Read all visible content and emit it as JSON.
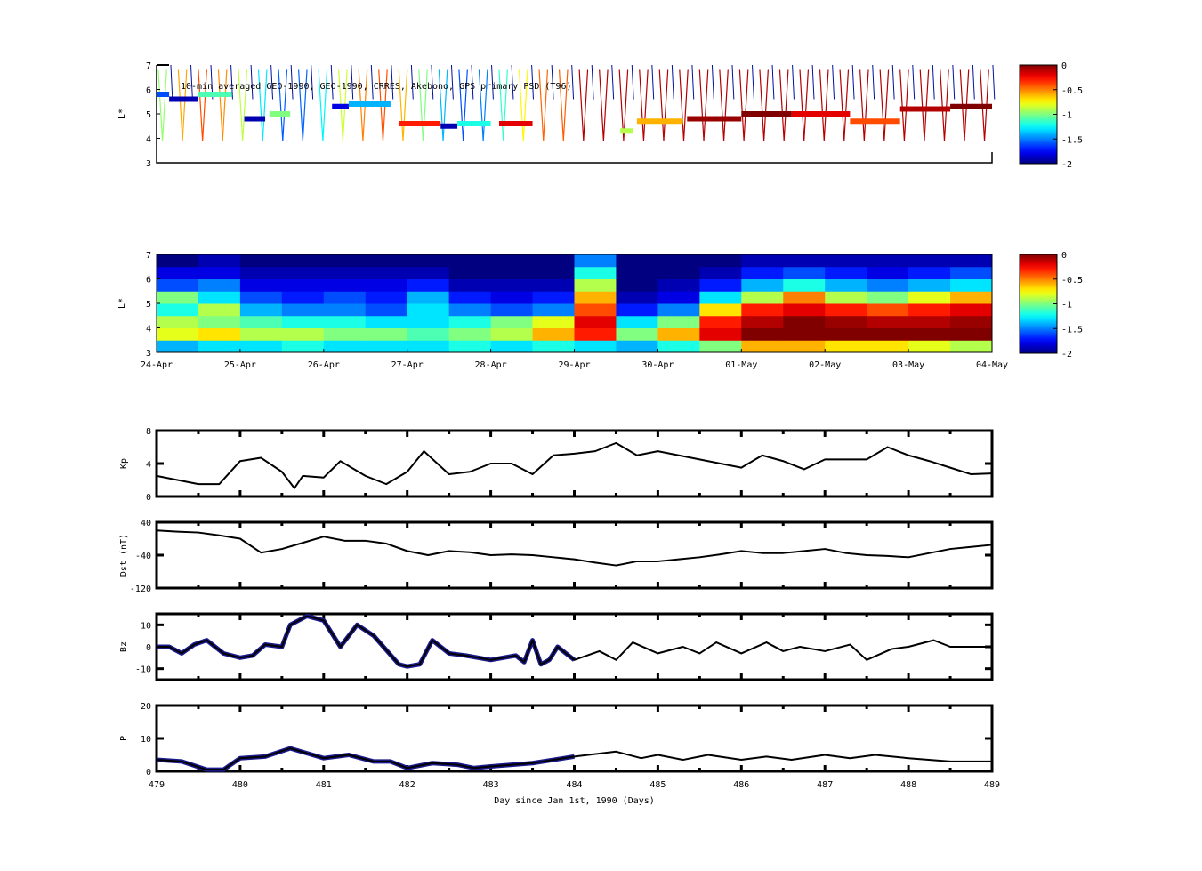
{
  "chart_data": [
    {
      "type": "heatmap",
      "id": "psd_obs",
      "title": "10-min averaged GEO-1990, GEO-1990, CRRES, Akebono, GPS  primary PSD (T96)",
      "ylabel": "L*",
      "ylim": [
        3,
        7
      ],
      "yticks": [
        3,
        4,
        5,
        6,
        7
      ],
      "xlim_days": [
        0,
        10
      ],
      "colorbar": {
        "range": [
          -2,
          0
        ],
        "ticks": [
          "0",
          "-0.5",
          "-1",
          "-1.5",
          "-2"
        ]
      },
      "tracks": [
        [
          0.0,
          0.15,
          5.8,
          -1.6
        ],
        [
          0.15,
          0.5,
          5.6,
          -1.9
        ],
        [
          0.5,
          0.9,
          5.8,
          -1.1
        ],
        [
          1.05,
          1.3,
          4.8,
          -1.9
        ],
        [
          1.35,
          1.6,
          5.0,
          -1.0
        ],
        [
          2.1,
          2.3,
          5.3,
          -1.8
        ],
        [
          2.3,
          2.8,
          5.4,
          -1.4
        ],
        [
          2.9,
          3.4,
          4.6,
          -0.3
        ],
        [
          3.4,
          3.6,
          4.5,
          -1.9
        ],
        [
          3.6,
          4.0,
          4.6,
          -1.2
        ],
        [
          4.1,
          4.5,
          4.6,
          -0.2
        ],
        [
          5.55,
          5.7,
          4.3,
          -0.9
        ],
        [
          5.75,
          6.3,
          4.7,
          -0.6
        ],
        [
          6.35,
          7.0,
          4.8,
          -0.05
        ],
        [
          7.0,
          7.6,
          5.0,
          0
        ],
        [
          7.6,
          8.3,
          5.0,
          -0.2
        ],
        [
          8.3,
          8.9,
          4.7,
          -0.4
        ],
        [
          8.9,
          9.5,
          5.2,
          -0.1
        ],
        [
          9.5,
          10.0,
          5.3,
          0
        ]
      ]
    },
    {
      "type": "heatmap",
      "id": "psd_assim",
      "ylabel": "L*",
      "ylim": [
        3,
        7
      ],
      "yticks": [
        3,
        4,
        5,
        6,
        7
      ],
      "xticklabels": [
        "24-Apr",
        "25-Apr",
        "26-Apr",
        "27-Apr",
        "28-Apr",
        "29-Apr",
        "30-Apr",
        "01-May",
        "02-May",
        "03-May",
        "04-May"
      ],
      "colorbar": {
        "range": [
          -2,
          0
        ],
        "ticks": [
          "0",
          "-0.5",
          "-1",
          "-1.5",
          "-2"
        ]
      },
      "L_bins": [
        3.25,
        3.75,
        4.25,
        4.75,
        5.25,
        5.75,
        6.25,
        6.75
      ],
      "time_bin_days": 0.5,
      "values": [
        [
          -1.4,
          -1.3,
          -1.3,
          -1.2,
          -1.3,
          -1.3,
          -1.3,
          -1.2,
          -1.3,
          -1.2,
          -1.3,
          -1.4,
          -1.2,
          -1.0,
          -0.6,
          -0.6,
          -0.7,
          -0.7,
          -0.8,
          -0.9
        ],
        [
          -0.8,
          -0.7,
          -0.9,
          -0.9,
          -1.0,
          -1.0,
          -1.1,
          -1.0,
          -0.9,
          -0.6,
          -0.3,
          -1.0,
          -0.6,
          -0.2,
          0,
          0,
          0,
          0,
          0,
          0
        ],
        [
          -0.9,
          -1.0,
          -1.1,
          -1.2,
          -1.2,
          -1.3,
          -1.3,
          -1.2,
          -1.0,
          -0.8,
          -0.2,
          -1.3,
          -1.0,
          -0.3,
          -0.1,
          0,
          -0.05,
          -0.1,
          -0.1,
          -0.05
        ],
        [
          -1.2,
          -0.9,
          -1.4,
          -1.5,
          -1.5,
          -1.6,
          -1.3,
          -1.5,
          -1.6,
          -1.5,
          -0.4,
          -1.7,
          -1.5,
          -0.7,
          -0.3,
          -0.2,
          -0.3,
          -0.4,
          -0.3,
          -0.2
        ],
        [
          -1.0,
          -1.3,
          -1.6,
          -1.7,
          -1.6,
          -1.7,
          -1.4,
          -1.7,
          -1.8,
          -1.7,
          -0.6,
          -1.9,
          -1.8,
          -1.3,
          -0.9,
          -0.5,
          -0.9,
          -1.0,
          -0.8,
          -0.6
        ],
        [
          -1.6,
          -1.5,
          -1.8,
          -1.8,
          -1.8,
          -1.8,
          -1.7,
          -1.9,
          -1.9,
          -1.9,
          -0.9,
          -2,
          -1.9,
          -1.7,
          -1.4,
          -1.2,
          -1.4,
          -1.5,
          -1.4,
          -1.3
        ],
        [
          -1.8,
          -1.8,
          -1.9,
          -1.9,
          -1.9,
          -1.9,
          -1.9,
          -2,
          -2,
          -2,
          -1.2,
          -2,
          -2,
          -1.9,
          -1.7,
          -1.6,
          -1.7,
          -1.8,
          -1.7,
          -1.6
        ],
        [
          -2,
          -1.9,
          -2,
          -2,
          -2,
          -2,
          -2,
          -2,
          -2,
          -2,
          -1.5,
          -2,
          -2,
          -2,
          -1.9,
          -1.9,
          -1.9,
          -1.9,
          -1.9,
          -1.9
        ]
      ]
    },
    {
      "type": "line",
      "id": "kp",
      "ylabel": "Kp",
      "ylim": [
        0,
        8
      ],
      "yticks": [
        "0",
        "4",
        "8"
      ],
      "x": [
        479,
        479.25,
        479.5,
        479.75,
        480,
        480.25,
        480.5,
        480.65,
        480.75,
        481,
        481.2,
        481.5,
        481.75,
        482,
        482.2,
        482.5,
        482.75,
        483,
        483.25,
        483.5,
        483.75,
        484,
        484.25,
        484.5,
        484.75,
        485,
        485.25,
        485.5,
        485.75,
        486,
        486.25,
        486.5,
        486.75,
        487,
        487.25,
        487.5,
        487.75,
        488,
        488.25,
        488.5,
        488.75,
        489
      ],
      "y": [
        2.5,
        2,
        1.5,
        1.5,
        4.3,
        4.7,
        3,
        1,
        2.5,
        2.3,
        4.3,
        2.5,
        1.5,
        3,
        5.5,
        2.7,
        3,
        4,
        4,
        2.7,
        5,
        5.2,
        5.5,
        6.5,
        5,
        5.5,
        5,
        4.5,
        4,
        3.5,
        5,
        4.3,
        3.3,
        4.5,
        4.5,
        4.5,
        6,
        5,
        4.3,
        3.5,
        2.7,
        2.8
      ]
    },
    {
      "type": "line",
      "id": "dst",
      "ylabel": "Dst (nT)",
      "ylim": [
        -120,
        40
      ],
      "yticks": [
        "40",
        "-40",
        "-120"
      ],
      "x": [
        479,
        479.25,
        479.5,
        479.75,
        480,
        480.25,
        480.5,
        480.75,
        481,
        481.25,
        481.5,
        481.75,
        482,
        482.25,
        482.5,
        482.75,
        483,
        483.25,
        483.5,
        483.75,
        484,
        484.25,
        484.5,
        484.75,
        485,
        485.25,
        485.5,
        485.75,
        486,
        486.25,
        486.5,
        486.75,
        487,
        487.25,
        487.5,
        487.75,
        488,
        488.25,
        488.5,
        488.75,
        489
      ],
      "y": [
        20,
        17,
        15,
        8,
        0,
        -34,
        -25,
        -10,
        5,
        -5,
        -5,
        -12,
        -30,
        -40,
        -30,
        -33,
        -40,
        -38,
        -40,
        -45,
        -50,
        -58,
        -65,
        -55,
        -55,
        -50,
        -45,
        -38,
        -30,
        -35,
        -35,
        -30,
        -25,
        -35,
        -40,
        -42,
        -45,
        -35,
        -25,
        -20,
        -15
      ]
    },
    {
      "type": "line",
      "id": "bz",
      "ylabel": "Bz",
      "ylim": [
        -15,
        15
      ],
      "yticks": [
        "10",
        "0",
        "-10"
      ],
      "measured_until": 484,
      "x": [
        479,
        479.15,
        479.3,
        479.45,
        479.6,
        479.8,
        480,
        480.15,
        480.3,
        480.5,
        480.6,
        480.8,
        481,
        481.2,
        481.4,
        481.6,
        481.9,
        482,
        482.15,
        482.3,
        482.5,
        482.7,
        483,
        483.3,
        483.4,
        483.5,
        483.6,
        483.7,
        483.8,
        484,
        484.3,
        484.5,
        484.7,
        485,
        485.3,
        485.5,
        485.7,
        486,
        486.3,
        486.5,
        486.7,
        487,
        487.3,
        487.5,
        487.8,
        488,
        488.3,
        488.5,
        488.75,
        489
      ],
      "y": [
        0,
        0,
        -3,
        1,
        3,
        -3,
        -5,
        -4,
        1,
        0,
        10,
        14,
        12,
        0,
        10,
        5,
        -8,
        -9,
        -8,
        3,
        -3,
        -4,
        -6,
        -4,
        -7,
        3,
        -8,
        -6,
        0,
        -6,
        -2,
        -6,
        2,
        -3,
        0,
        -3,
        2,
        -3,
        2,
        -2,
        0,
        -2,
        1,
        -6,
        -1,
        0,
        3,
        0,
        0,
        0
      ]
    },
    {
      "type": "line",
      "id": "p",
      "ylabel": "P",
      "ylim": [
        0,
        20
      ],
      "yticks": [
        "0",
        "10",
        "20"
      ],
      "xlabel": "Day since Jan 1st, 1990 (Days)",
      "xticks": [
        "479",
        "480",
        "481",
        "482",
        "483",
        "484",
        "485",
        "486",
        "487",
        "488",
        "489"
      ],
      "measured_until": 484,
      "x": [
        479,
        479.3,
        479.6,
        479.8,
        480,
        480.3,
        480.6,
        480.8,
        481,
        481.3,
        481.6,
        481.8,
        482,
        482.3,
        482.6,
        482.8,
        483,
        483.5,
        484,
        484.5,
        484.8,
        485,
        485.3,
        485.6,
        486,
        486.3,
        486.6,
        487,
        487.3,
        487.6,
        488,
        488.5,
        489
      ],
      "y": [
        3.5,
        3,
        0.5,
        0.5,
        4,
        4.5,
        7,
        5.5,
        4,
        5,
        3,
        3,
        1,
        2.5,
        2,
        1,
        1.5,
        2.5,
        4.5,
        6,
        4,
        5,
        3.5,
        5,
        3.5,
        4.5,
        3.5,
        5,
        4,
        5,
        4,
        3,
        3
      ]
    }
  ],
  "colors": {
    "measured": "#1a1a8c",
    "model": "#000000",
    "axis": "#000000"
  }
}
